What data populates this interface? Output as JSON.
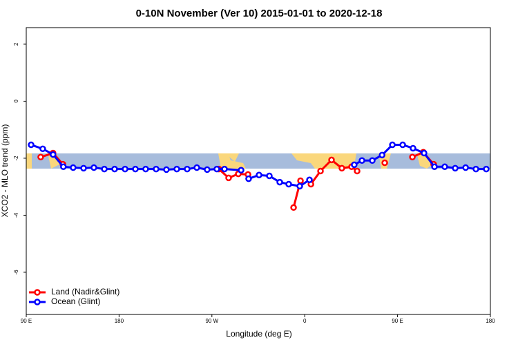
{
  "chart_data": {
    "type": "line",
    "title": "0-10N November (Ver 10)   2015-01-01 to 2020-12-18",
    "x_label": "Longitude (deg E)",
    "y_label": "XCO2 - MLO trend (ppm)",
    "xlim": [
      90,
      540
    ],
    "ylim": [
      -7.48,
      2.58
    ],
    "xticks": [
      {
        "value": 90,
        "label": "90 E"
      },
      {
        "value": 180,
        "label": "180"
      },
      {
        "value": 270,
        "label": "90 W"
      },
      {
        "value": 360,
        "label": "0"
      },
      {
        "value": 450,
        "label": "90 E"
      },
      {
        "value": 540,
        "label": "180"
      }
    ],
    "yticks": [
      2,
      0,
      -2,
      -4,
      -6
    ],
    "legend": "bottom-left",
    "series": [
      {
        "name": "Land (Nadir&Glint)",
        "color": "#ff0000",
        "x": [
          104,
          116,
          125.5,
          null,
          276.8,
          286.2,
          295.6,
          305,
          null,
          349.2,
          355.9,
          null,
          366,
          375.3,
          386,
          396,
          405.4,
          410.8,
          null,
          437.6,
          null,
          464.4,
          475,
          485
        ],
        "values": [
          -1.96,
          -1.82,
          -2.21,
          null,
          -2.38,
          -2.69,
          -2.55,
          -2.57,
          null,
          -3.73,
          -2.79,
          null,
          -2.91,
          -2.45,
          -2.06,
          -2.35,
          -2.3,
          -2.45,
          null,
          -2.16,
          null,
          -1.96,
          -1.79,
          -2.21
        ]
      },
      {
        "name": "Ocean (Glint)",
        "color": "#0000ff",
        "x": [
          94.7,
          106,
          116,
          126,
          135.5,
          145.6,
          155.6,
          165.7,
          175.7,
          185.8,
          195.8,
          205.8,
          215.9,
          225.9,
          236,
          246,
          255.4,
          265.4,
          274.8,
          282.2,
          298.3,
          null,
          305.6,
          315.7,
          325.7,
          335.8,
          344.5,
          355.2,
          364.6,
          null,
          408,
          415.5,
          425.5,
          435,
          445,
          455,
          465,
          475.7,
          485.8,
          495.8,
          505.9,
          516,
          526,
          536
        ],
        "values": [
          -1.53,
          -1.67,
          -1.87,
          -2.3,
          -2.33,
          -2.35,
          -2.33,
          -2.38,
          -2.38,
          -2.38,
          -2.38,
          -2.38,
          -2.38,
          -2.4,
          -2.38,
          -2.38,
          -2.33,
          -2.4,
          -2.38,
          -2.38,
          -2.42,
          null,
          -2.72,
          -2.59,
          -2.62,
          -2.84,
          -2.91,
          -2.98,
          -2.76,
          null,
          -2.23,
          -2.08,
          -2.08,
          -1.89,
          -1.53,
          -1.53,
          -1.65,
          -1.82,
          -2.3,
          -2.3,
          -2.35,
          -2.33,
          -2.38,
          -2.38
        ]
      }
    ]
  }
}
